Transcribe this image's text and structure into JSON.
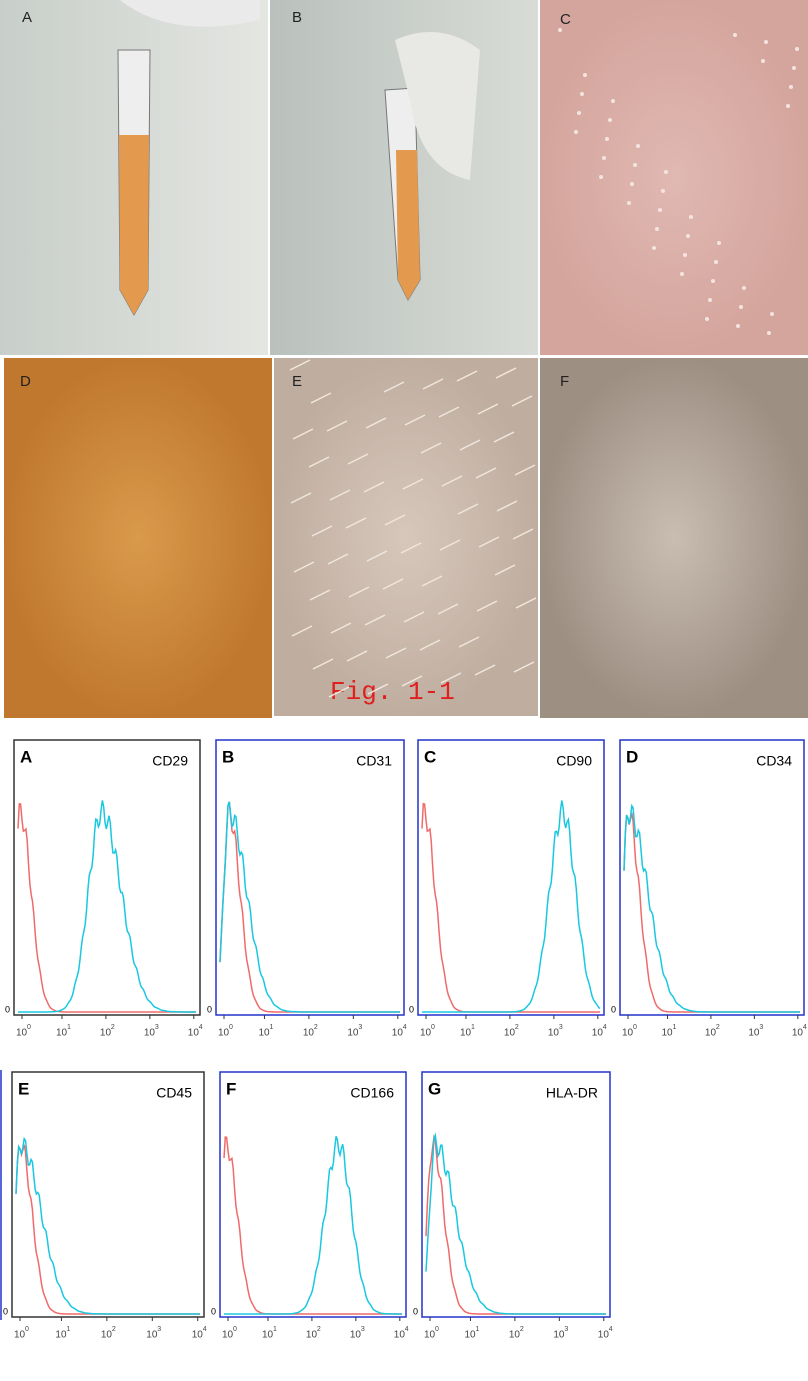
{
  "photos": [
    {
      "label": "A"
    },
    {
      "label": "B"
    },
    {
      "label": "C"
    },
    {
      "label": "D"
    },
    {
      "label": "E"
    },
    {
      "label": "F"
    }
  ],
  "fig_label": "Fig. 1-1",
  "histograms": [
    {
      "panel": "A",
      "marker": "CD29"
    },
    {
      "panel": "B",
      "marker": "CD31"
    },
    {
      "panel": "C",
      "marker": "CD90"
    },
    {
      "panel": "D",
      "marker": "CD34"
    },
    {
      "panel": "E",
      "marker": "CD45"
    },
    {
      "panel": "F",
      "marker": "CD166"
    },
    {
      "panel": "G",
      "marker": "HLA-DR"
    }
  ],
  "axis": {
    "zero_label": "0",
    "tick_base": "10",
    "tick_exponents": [
      "0",
      "1",
      "2",
      "3",
      "4"
    ]
  }
}
